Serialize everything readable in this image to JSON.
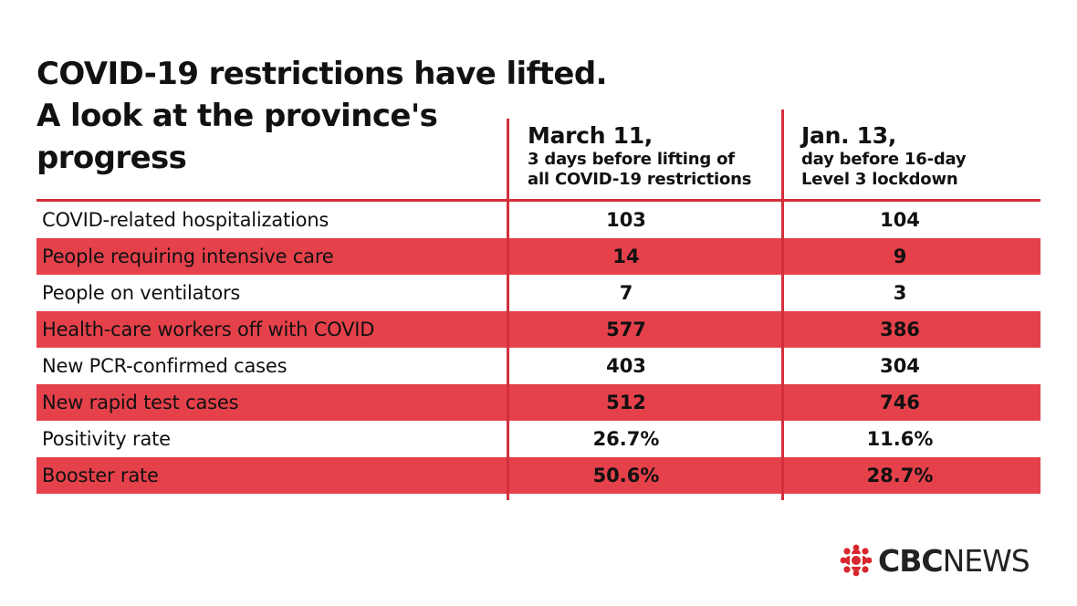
{
  "title": {
    "line1": "COVID-19 restrictions have lifted.",
    "line2": "A look at the province's",
    "line3": "progress"
  },
  "columns": [
    {
      "heading": "March 11,",
      "subheading_line1": "3 days before lifting of",
      "subheading_line2": "all COVID-19 restrictions"
    },
    {
      "heading": "Jan. 13,",
      "subheading_line1": "day before 16-day",
      "subheading_line2": "Level 3 lockdown"
    }
  ],
  "rows": [
    {
      "label": "COVID-related hospitalizations",
      "march11": "103",
      "jan13": "104"
    },
    {
      "label": "People requiring intensive care",
      "march11": "14",
      "jan13": "9"
    },
    {
      "label": "People on ventilators",
      "march11": "7",
      "jan13": "3"
    },
    {
      "label": "Health-care workers off with COVID",
      "march11": "577",
      "jan13": "386"
    },
    {
      "label": "New PCR-confirmed cases",
      "march11": "403",
      "jan13": "304"
    },
    {
      "label": "New rapid test cases",
      "march11": "512",
      "jan13": "746"
    },
    {
      "label": "Positivity rate",
      "march11": "26.7%",
      "jan13": "11.6%"
    },
    {
      "label": "Booster rate",
      "march11": "50.6%",
      "jan13": "28.7%"
    }
  ],
  "brand": {
    "cbc": "CBC",
    "news": "NEWS",
    "icon": "cbc-gem-icon"
  },
  "colors": {
    "accent": "#d22f3c",
    "row_shade": "#e5414b",
    "text": "#111111"
  }
}
